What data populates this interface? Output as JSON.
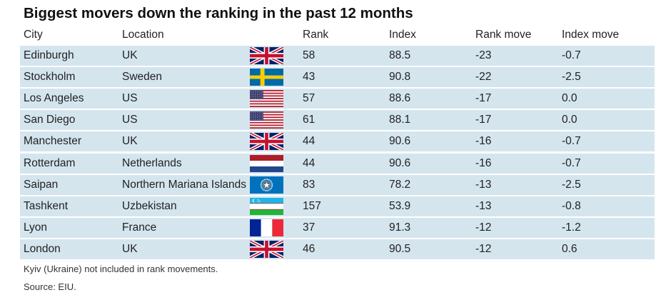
{
  "chart_data": {
    "type": "table",
    "title": "Biggest movers down the ranking in the past 12 months",
    "columns": [
      "City",
      "Location",
      "Rank",
      "Index",
      "Rank move",
      "Index move"
    ],
    "rows": [
      {
        "city": "Edinburgh",
        "location": "UK",
        "flag": "uk-flag",
        "rank": "58",
        "index": "88.5",
        "rank_move": "-23",
        "index_move": "-0.7"
      },
      {
        "city": "Stockholm",
        "location": "Sweden",
        "flag": "sweden-flag",
        "rank": "43",
        "index": "90.8",
        "rank_move": "-22",
        "index_move": "-2.5"
      },
      {
        "city": "Los Angeles",
        "location": "US",
        "flag": "us-flag",
        "rank": "57",
        "index": "88.6",
        "rank_move": "-17",
        "index_move": "0.0"
      },
      {
        "city": "San Diego",
        "location": "US",
        "flag": "us-flag",
        "rank": "61",
        "index": "88.1",
        "rank_move": "-17",
        "index_move": "0.0"
      },
      {
        "city": "Manchester",
        "location": "UK",
        "flag": "uk-flag",
        "rank": "44",
        "index": "90.6",
        "rank_move": "-16",
        "index_move": "-0.7"
      },
      {
        "city": "Rotterdam",
        "location": "Netherlands",
        "flag": "netherlands-flag",
        "rank": "44",
        "index": "90.6",
        "rank_move": "-16",
        "index_move": "-0.7"
      },
      {
        "city": "Saipan",
        "location": "Northern Mariana Islands",
        "flag": "northern-mariana-islands-flag",
        "rank": "83",
        "index": "78.2",
        "rank_move": "-13",
        "index_move": "-2.5"
      },
      {
        "city": "Tashkent",
        "location": "Uzbekistan",
        "flag": "uzbekistan-flag",
        "rank": "157",
        "index": "53.9",
        "rank_move": "-13",
        "index_move": "-0.8"
      },
      {
        "city": "Lyon",
        "location": "France",
        "flag": "france-flag",
        "rank": "37",
        "index": "91.3",
        "rank_move": "-12",
        "index_move": "-1.2"
      },
      {
        "city": "London",
        "location": "UK",
        "flag": "uk-flag",
        "rank": "46",
        "index": "90.5",
        "rank_move": "-12",
        "index_move": "0.6"
      }
    ],
    "notes": [
      "Kyiv (Ukraine) not included in rank movements.",
      "Source: EIU."
    ]
  },
  "colors": {
    "row_background": "#d4e5ee",
    "title": "#111111",
    "text": "#222222"
  }
}
